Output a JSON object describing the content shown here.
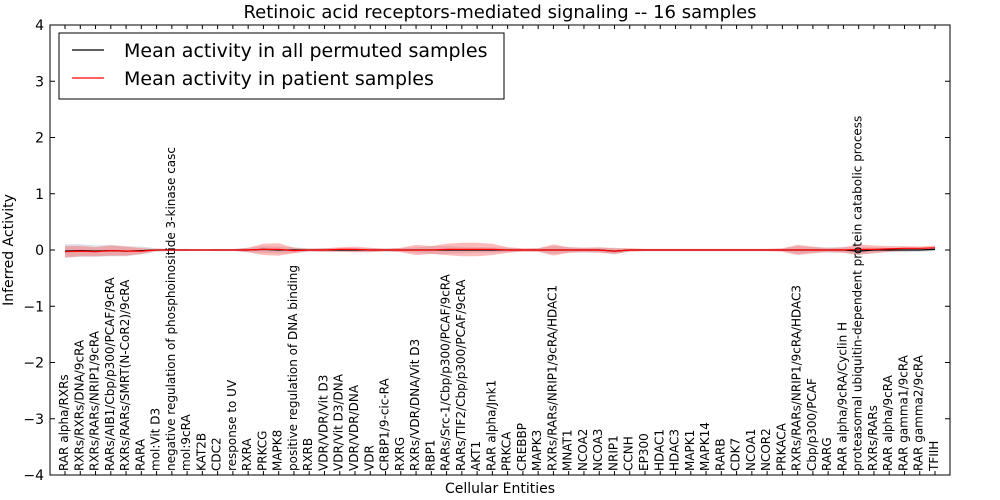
{
  "chart_data": {
    "type": "line",
    "title": "Retinoic acid receptors-mediated signaling -- 16 samples",
    "xlabel": "Cellular Entities",
    "ylabel": "Inferred Activity",
    "ylim": [
      -4,
      4
    ],
    "yticks": [
      "4",
      "3",
      "2",
      "1",
      "0",
      "−1",
      "−2",
      "−3",
      "−4"
    ],
    "legend": {
      "location": "upper-left",
      "entries": [
        {
          "label": "Mean activity in all permuted samples",
          "color": "#000000"
        },
        {
          "label": "Mean activity in patient samples",
          "color": "#ff0000"
        }
      ]
    },
    "categories": [
      "RAR alpha/RXRs",
      "RXRs/RXRs/DNA/9cRA",
      "RXRs/RARs/NRIP1/9cRA",
      "RARs/AIB1/Cbp/p300/PCAF/9cRA",
      "RXRs/RARs/SMRT(N-CoR2)/9cRA",
      "RARA",
      "mol:Vit D3",
      "negative regulation of phosphoinositide 3-kinase casc",
      "mol:9cRA",
      "KAT2B",
      "CDC2",
      "response to UV",
      "RXRA",
      "PRKCG",
      "MAPK8",
      "positive regulation of DNA binding",
      "RXRB",
      "VDR/VDR/Vit D3",
      "VDR/Vit D3/DNA",
      "VDR/VDR/DNA",
      "VDR",
      "CRBP1/9-cic-RA",
      "RXRG",
      "RXRs/VDR/DNA/Vit D3",
      "RBP1",
      "RARs/Src-1/Cbp/p300/PCAF/9cRA",
      "RARs/TIF2/Cbp/p300/PCAF/9cRA",
      "AKT1",
      "RAR alpha/Jnk1",
      "PRKCA",
      "CREBBP",
      "MAPK3",
      "RXRs/RARs/NRIP1/9cRA/HDAC1",
      "MNAT1",
      "NCOA2",
      "NCOA3",
      "NRIP1",
      "CCNH",
      "EP300",
      "HDAC1",
      "HDAC3",
      "MAPK1",
      "MAPK14",
      "RARB",
      "CDK7",
      "NCOA1",
      "NCOR2",
      "PRKACA",
      "RXRs/RARs/NRIP1/9cRA/HDAC3",
      "Cbp/p300/PCAF",
      "RARG",
      "RAR alpha/9cRA/Cyclin H",
      "proteasomal ubiquitin-dependent protein catabolic process",
      "RXRs/RARs",
      "RAR alpha/9cRA",
      "RAR gamma1/9cRA",
      "RAR gamma2/9cRA",
      "TFIIH"
    ],
    "series": [
      {
        "name": "Mean activity in all permuted samples",
        "color": "#000000",
        "values": [
          -0.02,
          -0.01,
          -0.02,
          -0.01,
          -0.02,
          -0.01,
          0,
          0,
          0,
          0,
          0,
          0,
          0,
          0.01,
          0,
          0,
          0,
          0,
          0,
          0,
          0,
          0,
          0,
          0,
          0,
          0,
          0,
          0,
          0,
          0,
          0,
          0,
          0,
          0,
          0,
          0,
          -0.02,
          0,
          0,
          0,
          0,
          0,
          0,
          0,
          0,
          0,
          0,
          0,
          0,
          0,
          0,
          0,
          -0.02,
          0,
          0,
          0,
          0,
          0.01
        ]
      },
      {
        "name": "Mean activity in patient samples",
        "color": "#ff0000",
        "values": [
          -0.03,
          -0.02,
          -0.03,
          -0.01,
          -0.02,
          -0.02,
          0,
          0,
          0,
          0,
          0,
          0,
          0,
          0.01,
          0.01,
          -0.01,
          0,
          0,
          0.01,
          0.01,
          0,
          0,
          0,
          0,
          0,
          0.01,
          0.01,
          0.01,
          0.01,
          0,
          0,
          0,
          0,
          0,
          0,
          0,
          -0.02,
          0,
          0,
          0,
          0,
          0,
          0,
          0,
          0,
          0,
          0,
          0,
          0,
          0,
          0,
          0,
          0.01,
          0.01,
          0.02,
          0.03,
          0.03,
          0.04
        ]
      }
    ],
    "permuted_band_halfwidth": [
      0.12,
      0.11,
      0.1,
      0.1,
      0.09,
      0.07,
      0.03,
      0.02,
      0.02,
      0.01,
      0.02,
      0.02,
      0.04,
      0.06,
      0.06,
      0.05,
      0.03,
      0.03,
      0.03,
      0.03,
      0.03,
      0.03,
      0.03,
      0.05,
      0.07,
      0.07,
      0.06,
      0.05,
      0.05,
      0.04,
      0.02,
      0.03,
      0.07,
      0.05,
      0.04,
      0.04,
      0.06,
      0.02,
      0.02,
      0.02,
      0.02,
      0.02,
      0.02,
      0.02,
      0.02,
      0.02,
      0.02,
      0.02,
      0.07,
      0.05,
      0.05,
      0.05,
      0.07,
      0.05,
      0.04,
      0.04,
      0.03,
      0.03
    ],
    "patient_band_halfwidth": [
      0.1,
      0.09,
      0.08,
      0.09,
      0.08,
      0.05,
      0.01,
      0.01,
      0.01,
      0.01,
      0.01,
      0.01,
      0.04,
      0.1,
      0.11,
      0.05,
      0.02,
      0.03,
      0.04,
      0.05,
      0.04,
      0.02,
      0.04,
      0.09,
      0.07,
      0.1,
      0.12,
      0.12,
      0.1,
      0.05,
      0.03,
      0.03,
      0.1,
      0.05,
      0.04,
      0.05,
      0.05,
      0.03,
      0.02,
      0.02,
      0.02,
      0.02,
      0.02,
      0.02,
      0.02,
      0.02,
      0.02,
      0.03,
      0.09,
      0.06,
      0.03,
      0.05,
      0.09,
      0.07,
      0.05,
      0.04,
      0.03,
      0.04
    ]
  }
}
